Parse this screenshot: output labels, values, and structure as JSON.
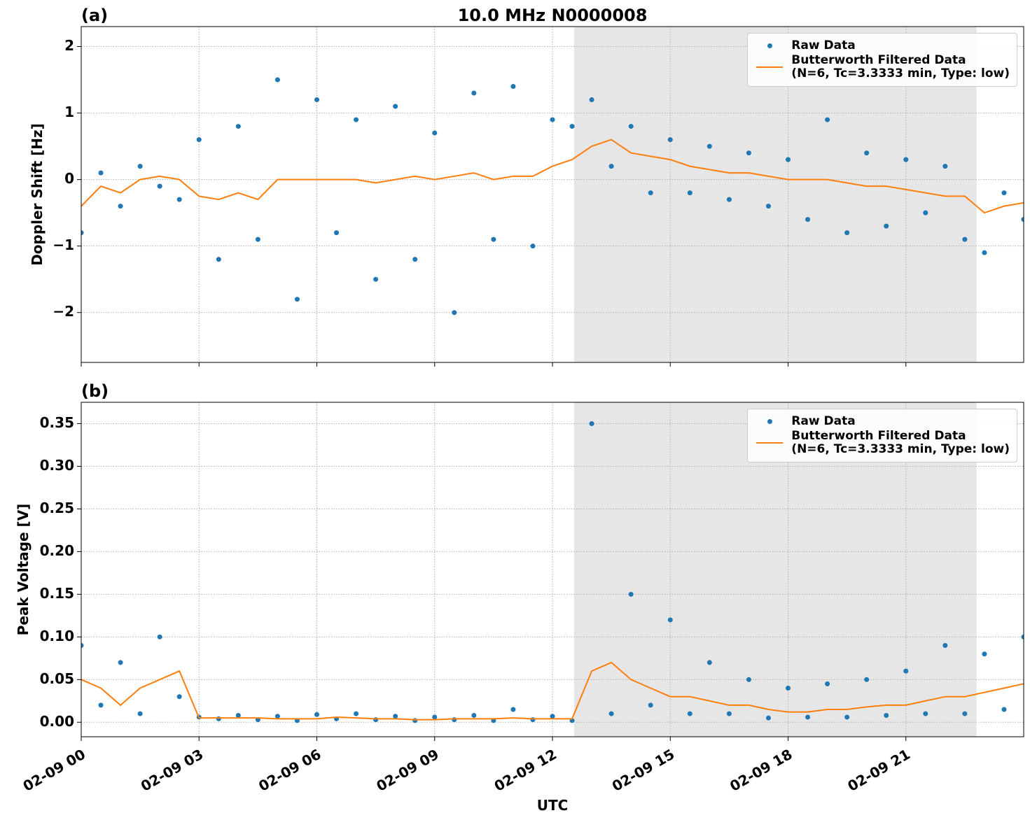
{
  "chart_data": [
    {
      "type": "line",
      "panel_label": "(a)",
      "title": "10.0 MHz N0000008",
      "ylabel": "Doppler Shift [Hz]",
      "x": [
        0,
        0.5,
        1,
        1.5,
        2,
        2.5,
        3,
        3.5,
        4,
        4.5,
        5,
        5.5,
        6,
        6.5,
        7,
        7.5,
        8,
        8.5,
        9,
        9.5,
        10,
        10.5,
        11,
        11.5,
        12,
        12.5,
        13,
        13.5,
        14,
        14.5,
        15,
        15.5,
        16,
        16.5,
        17,
        17.5,
        18,
        18.5,
        19,
        19.5,
        20,
        20.5,
        21,
        21.5,
        22,
        22.5,
        23,
        23.5,
        24
      ],
      "series": [
        {
          "name": "Raw Data",
          "type": "scatter",
          "color": "#1f77b4",
          "values": [
            -0.8,
            0.1,
            -0.4,
            0.2,
            -0.1,
            -0.3,
            0.6,
            -1.2,
            0.8,
            -0.9,
            1.5,
            -1.8,
            1.2,
            -0.8,
            0.9,
            -1.5,
            1.1,
            -1.2,
            0.7,
            -2.0,
            1.3,
            -0.9,
            1.4,
            -1.0,
            0.9,
            0.8,
            1.2,
            0.2,
            0.8,
            -0.2,
            0.6,
            -0.2,
            0.5,
            -0.3,
            0.4,
            -0.4,
            0.3,
            -0.6,
            0.9,
            -0.8,
            0.4,
            -0.7,
            0.3,
            -0.5,
            0.2,
            -0.9,
            -1.1,
            -0.2,
            -0.6
          ]
        },
        {
          "name": "Butterworth Filtered Data\n(N=6, Tc=3.3333 min, Type: low)",
          "type": "line",
          "color": "#ff7f0e",
          "values": [
            -0.4,
            -0.1,
            -0.2,
            0.0,
            0.05,
            0.0,
            -0.25,
            -0.3,
            -0.2,
            -0.3,
            0.0,
            0.0,
            0.0,
            0.0,
            0.0,
            -0.05,
            0.0,
            0.05,
            0.0,
            0.05,
            0.1,
            0.0,
            0.05,
            0.05,
            0.2,
            0.3,
            0.5,
            0.6,
            0.4,
            0.35,
            0.3,
            0.2,
            0.15,
            0.1,
            0.1,
            0.05,
            0.0,
            0.0,
            0.0,
            -0.05,
            -0.1,
            -0.1,
            -0.15,
            -0.2,
            -0.25,
            -0.25,
            -0.5,
            -0.4,
            -0.35
          ]
        }
      ],
      "xlim": [
        0,
        24
      ],
      "xticks": [
        0,
        3,
        6,
        9,
        12,
        15,
        18,
        21
      ],
      "ylim": [
        -2.75,
        2.3
      ],
      "yticks": [
        {
          "value": -2,
          "label": "−2"
        },
        {
          "value": -1,
          "label": "−1"
        },
        0,
        1,
        2
      ],
      "shaded_span": [
        12.55,
        22.8
      ],
      "grid": true,
      "legend": "upper right"
    },
    {
      "type": "line",
      "panel_label": "(b)",
      "ylabel": "Peak Voltage [V]",
      "xlabel": "UTC",
      "x": [
        0,
        0.5,
        1,
        1.5,
        2,
        2.5,
        3,
        3.5,
        4,
        4.5,
        5,
        5.5,
        6,
        6.5,
        7,
        7.5,
        8,
        8.5,
        9,
        9.5,
        10,
        10.5,
        11,
        11.5,
        12,
        12.5,
        13,
        13.5,
        14,
        14.5,
        15,
        15.5,
        16,
        16.5,
        17,
        17.5,
        18,
        18.5,
        19,
        19.5,
        20,
        20.5,
        21,
        21.5,
        22,
        22.5,
        23,
        23.5,
        24
      ],
      "series": [
        {
          "name": "Raw Data",
          "type": "scatter",
          "color": "#1f77b4",
          "values": [
            0.09,
            0.02,
            0.07,
            0.01,
            0.1,
            0.03,
            0.006,
            0.004,
            0.008,
            0.003,
            0.007,
            0.002,
            0.009,
            0.004,
            0.01,
            0.003,
            0.007,
            0.002,
            0.006,
            0.003,
            0.008,
            0.002,
            0.015,
            0.003,
            0.007,
            0.002,
            0.35,
            0.01,
            0.15,
            0.02,
            0.12,
            0.01,
            0.07,
            0.01,
            0.05,
            0.005,
            0.04,
            0.006,
            0.045,
            0.006,
            0.05,
            0.008,
            0.06,
            0.01,
            0.09,
            0.01,
            0.08,
            0.015,
            0.1
          ]
        },
        {
          "name": "Butterworth Filtered Data\n(N=6, Tc=3.3333 min, Type: low)",
          "type": "line",
          "color": "#ff7f0e",
          "values": [
            0.05,
            0.04,
            0.02,
            0.04,
            0.05,
            0.06,
            0.005,
            0.005,
            0.005,
            0.005,
            0.004,
            0.004,
            0.004,
            0.006,
            0.005,
            0.004,
            0.004,
            0.003,
            0.003,
            0.004,
            0.004,
            0.004,
            0.005,
            0.004,
            0.004,
            0.004,
            0.06,
            0.07,
            0.05,
            0.04,
            0.03,
            0.03,
            0.025,
            0.02,
            0.02,
            0.015,
            0.012,
            0.012,
            0.015,
            0.015,
            0.018,
            0.02,
            0.02,
            0.025,
            0.03,
            0.03,
            0.035,
            0.04,
            0.045
          ]
        }
      ],
      "xlim": [
        0,
        24
      ],
      "xticks": [
        {
          "value": 0,
          "label": "02-09 00"
        },
        {
          "value": 3,
          "label": "02-09 03"
        },
        {
          "value": 6,
          "label": "02-09 06"
        },
        {
          "value": 9,
          "label": "02-09 09"
        },
        {
          "value": 12,
          "label": "02-09 12"
        },
        {
          "value": 15,
          "label": "02-09 15"
        },
        {
          "value": 18,
          "label": "02-09 18"
        },
        {
          "value": 21,
          "label": "02-09 21"
        }
      ],
      "ylim": [
        -0.017,
        0.375
      ],
      "yticks": [
        {
          "value": 0,
          "label": "0.00"
        },
        {
          "value": 0.05,
          "label": "0.05"
        },
        {
          "value": 0.1,
          "label": "0.10"
        },
        {
          "value": 0.15,
          "label": "0.15"
        },
        {
          "value": 0.2,
          "label": "0.20"
        },
        {
          "value": 0.25,
          "label": "0.25"
        },
        {
          "value": 0.3,
          "label": "0.30"
        },
        {
          "value": 0.35,
          "label": "0.35"
        }
      ],
      "shaded_span": [
        12.55,
        22.8
      ],
      "grid": true,
      "legend": "upper right"
    }
  ]
}
